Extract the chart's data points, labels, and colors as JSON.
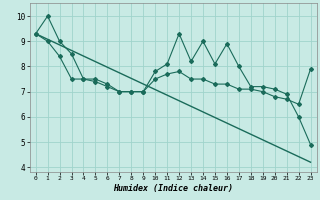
{
  "title": "",
  "xlabel": "Humidex (Indice chaleur)",
  "ylabel": "",
  "bg_color": "#c8eae4",
  "line_color": "#1a6b5a",
  "grid_color": "#a0d4cc",
  "xlim": [
    -0.5,
    23.5
  ],
  "ylim": [
    3.8,
    10.5
  ],
  "xticks": [
    0,
    1,
    2,
    3,
    4,
    5,
    6,
    7,
    8,
    9,
    10,
    11,
    12,
    13,
    14,
    15,
    16,
    17,
    18,
    19,
    20,
    21,
    22,
    23
  ],
  "yticks": [
    4,
    5,
    6,
    7,
    8,
    9,
    10
  ],
  "series1_x": [
    0,
    1,
    2,
    3,
    4,
    5,
    6,
    7,
    8,
    9,
    10,
    11,
    12,
    13,
    14,
    15,
    16,
    17,
    18,
    19,
    20,
    21,
    22,
    23
  ],
  "series1_y": [
    9.3,
    10.0,
    9.0,
    8.5,
    7.5,
    7.5,
    7.3,
    7.0,
    7.0,
    7.0,
    7.8,
    8.1,
    9.3,
    8.2,
    9.0,
    8.1,
    8.9,
    8.0,
    7.2,
    7.2,
    7.1,
    6.9,
    6.0,
    4.9
  ],
  "series2_x": [
    0,
    1,
    2,
    3,
    4,
    5,
    6,
    7,
    8,
    9,
    10,
    11,
    12,
    13,
    14,
    15,
    16,
    17,
    18,
    19,
    20,
    21,
    22,
    23
  ],
  "series2_y": [
    9.3,
    9.0,
    8.4,
    7.5,
    7.5,
    7.4,
    7.2,
    7.0,
    7.0,
    7.0,
    7.5,
    7.7,
    7.8,
    7.5,
    7.5,
    7.3,
    7.3,
    7.1,
    7.1,
    7.0,
    6.8,
    6.7,
    6.5,
    7.9
  ],
  "series3_x": [
    0,
    23
  ],
  "series3_y": [
    9.3,
    4.2
  ]
}
